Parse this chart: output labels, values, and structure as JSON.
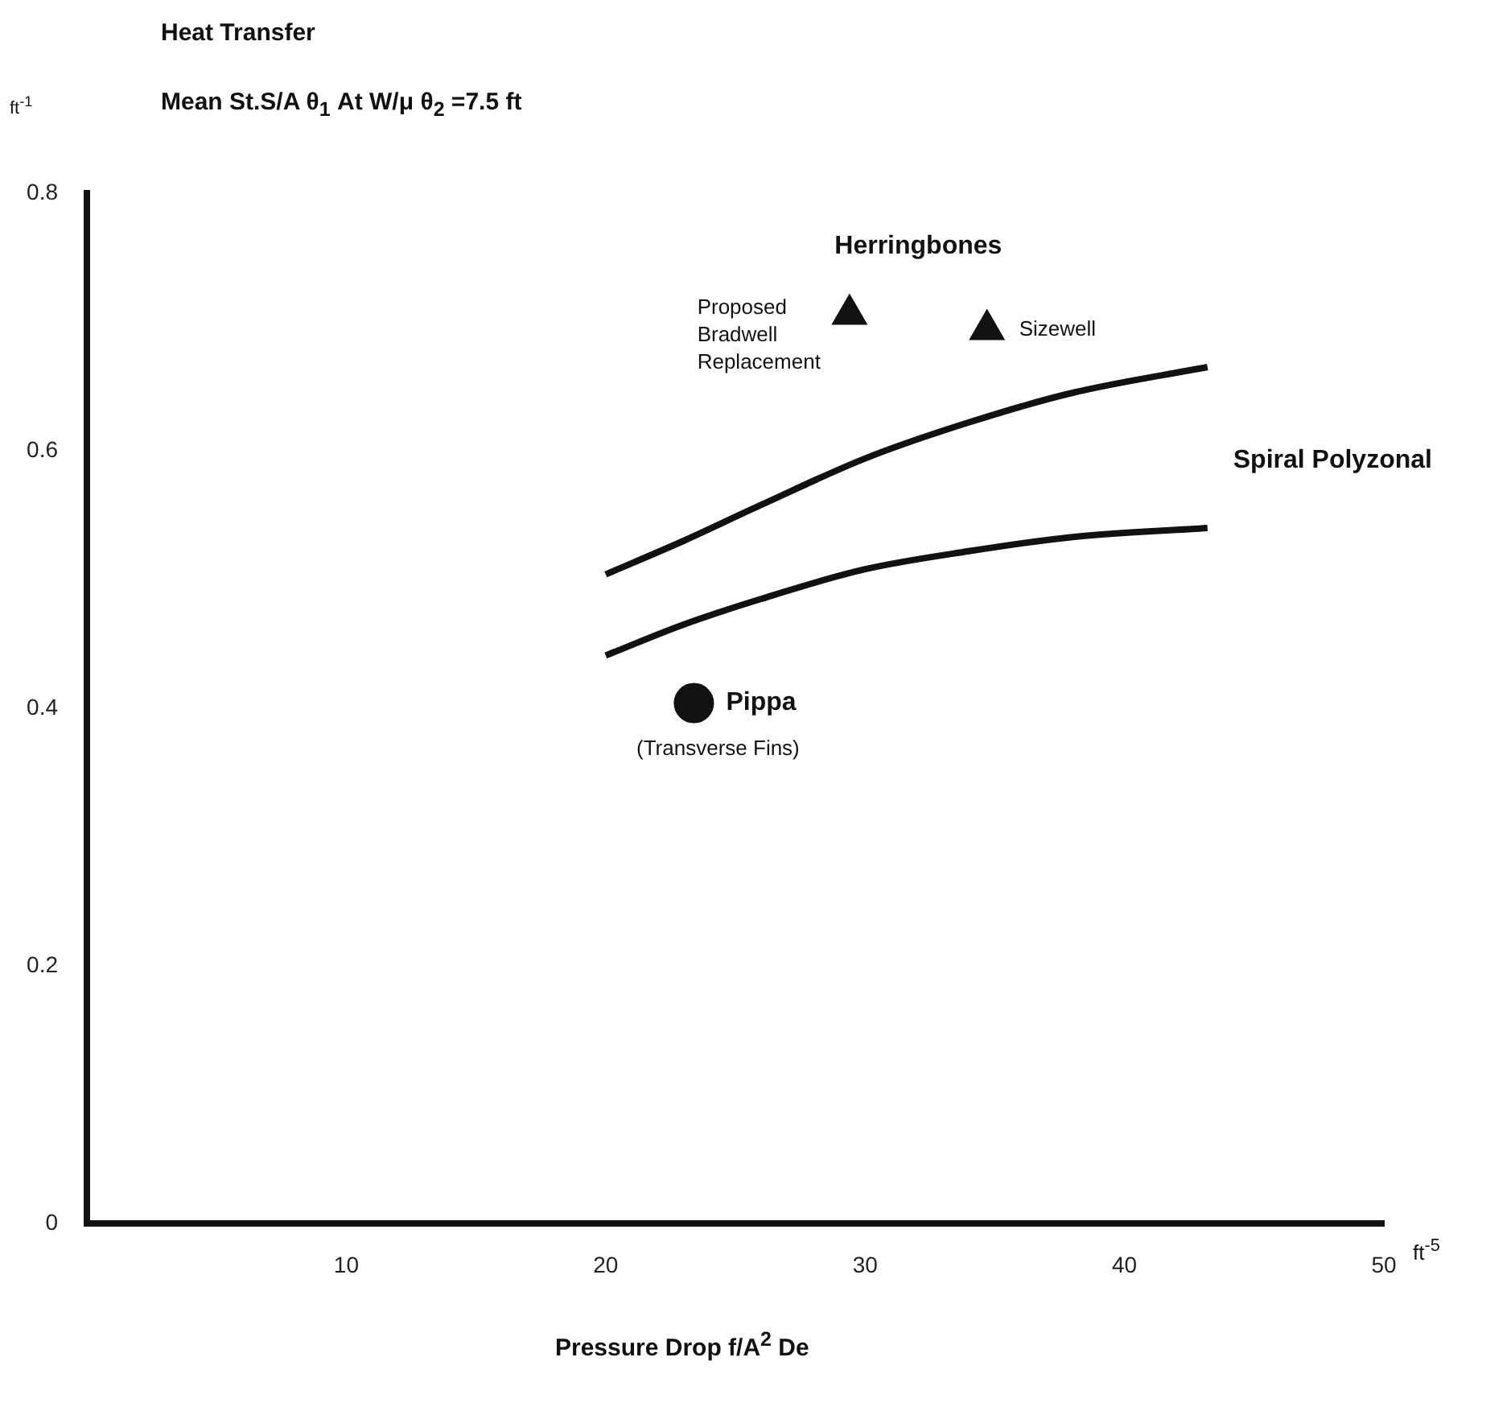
{
  "chart_data": {
    "type": "scatter",
    "title": "Heat Transfer",
    "subtitle": "Mean St.S/A θ$_{1}$ At W/μ θ$_{2}$ =7.5 ft",
    "ylabel": "ft$^{-1}$",
    "xlabel": "Pressure Drop f/A$^{2}$ De",
    "xlim": [
      0,
      50
    ],
    "xticks": [
      10,
      20,
      30,
      40,
      50
    ],
    "ylim": [
      0,
      0.8
    ],
    "yticks": [
      0,
      0.2,
      0.4,
      0.6,
      0.8
    ],
    "grid": false,
    "legend": false,
    "series": [
      {
        "type": "line",
        "color": "#111111",
        "x": [
          20,
          23,
          26,
          30,
          34,
          38,
          43.2
        ],
        "values": [
          0.504,
          0.53,
          0.558,
          0.594,
          0.622,
          0.645,
          0.665
        ]
      },
      {
        "type": "line",
        "name": "Spiral Polyzonal",
        "color": "#111111",
        "x": [
          20,
          23,
          26,
          30,
          34,
          38,
          43.2
        ],
        "values": [
          0.441,
          0.465,
          0.485,
          0.508,
          0.522,
          0.533,
          0.54
        ]
      },
      {
        "type": "scatter",
        "name": "Herringbones",
        "color": "#111111",
        "marker": "triangle",
        "x": [
          29.4,
          34.7
        ],
        "values": [
          0.706,
          0.694
        ]
      },
      {
        "type": "scatter",
        "name": "Pippa",
        "color": "#111111",
        "marker": "circle",
        "x": [
          23.4
        ],
        "values": [
          0.404
        ]
      }
    ],
    "annotations": [
      {
        "text": "Proposed Bradwell Replacement",
        "x": 29.4,
        "y": 0.706
      },
      {
        "text": "Sizewell",
        "x": 34.7,
        "y": 0.694
      },
      {
        "text": "(Transverse Fins)",
        "x": 23.4,
        "y": 0.404
      },
      "ft$^{-5}$"
    ]
  }
}
